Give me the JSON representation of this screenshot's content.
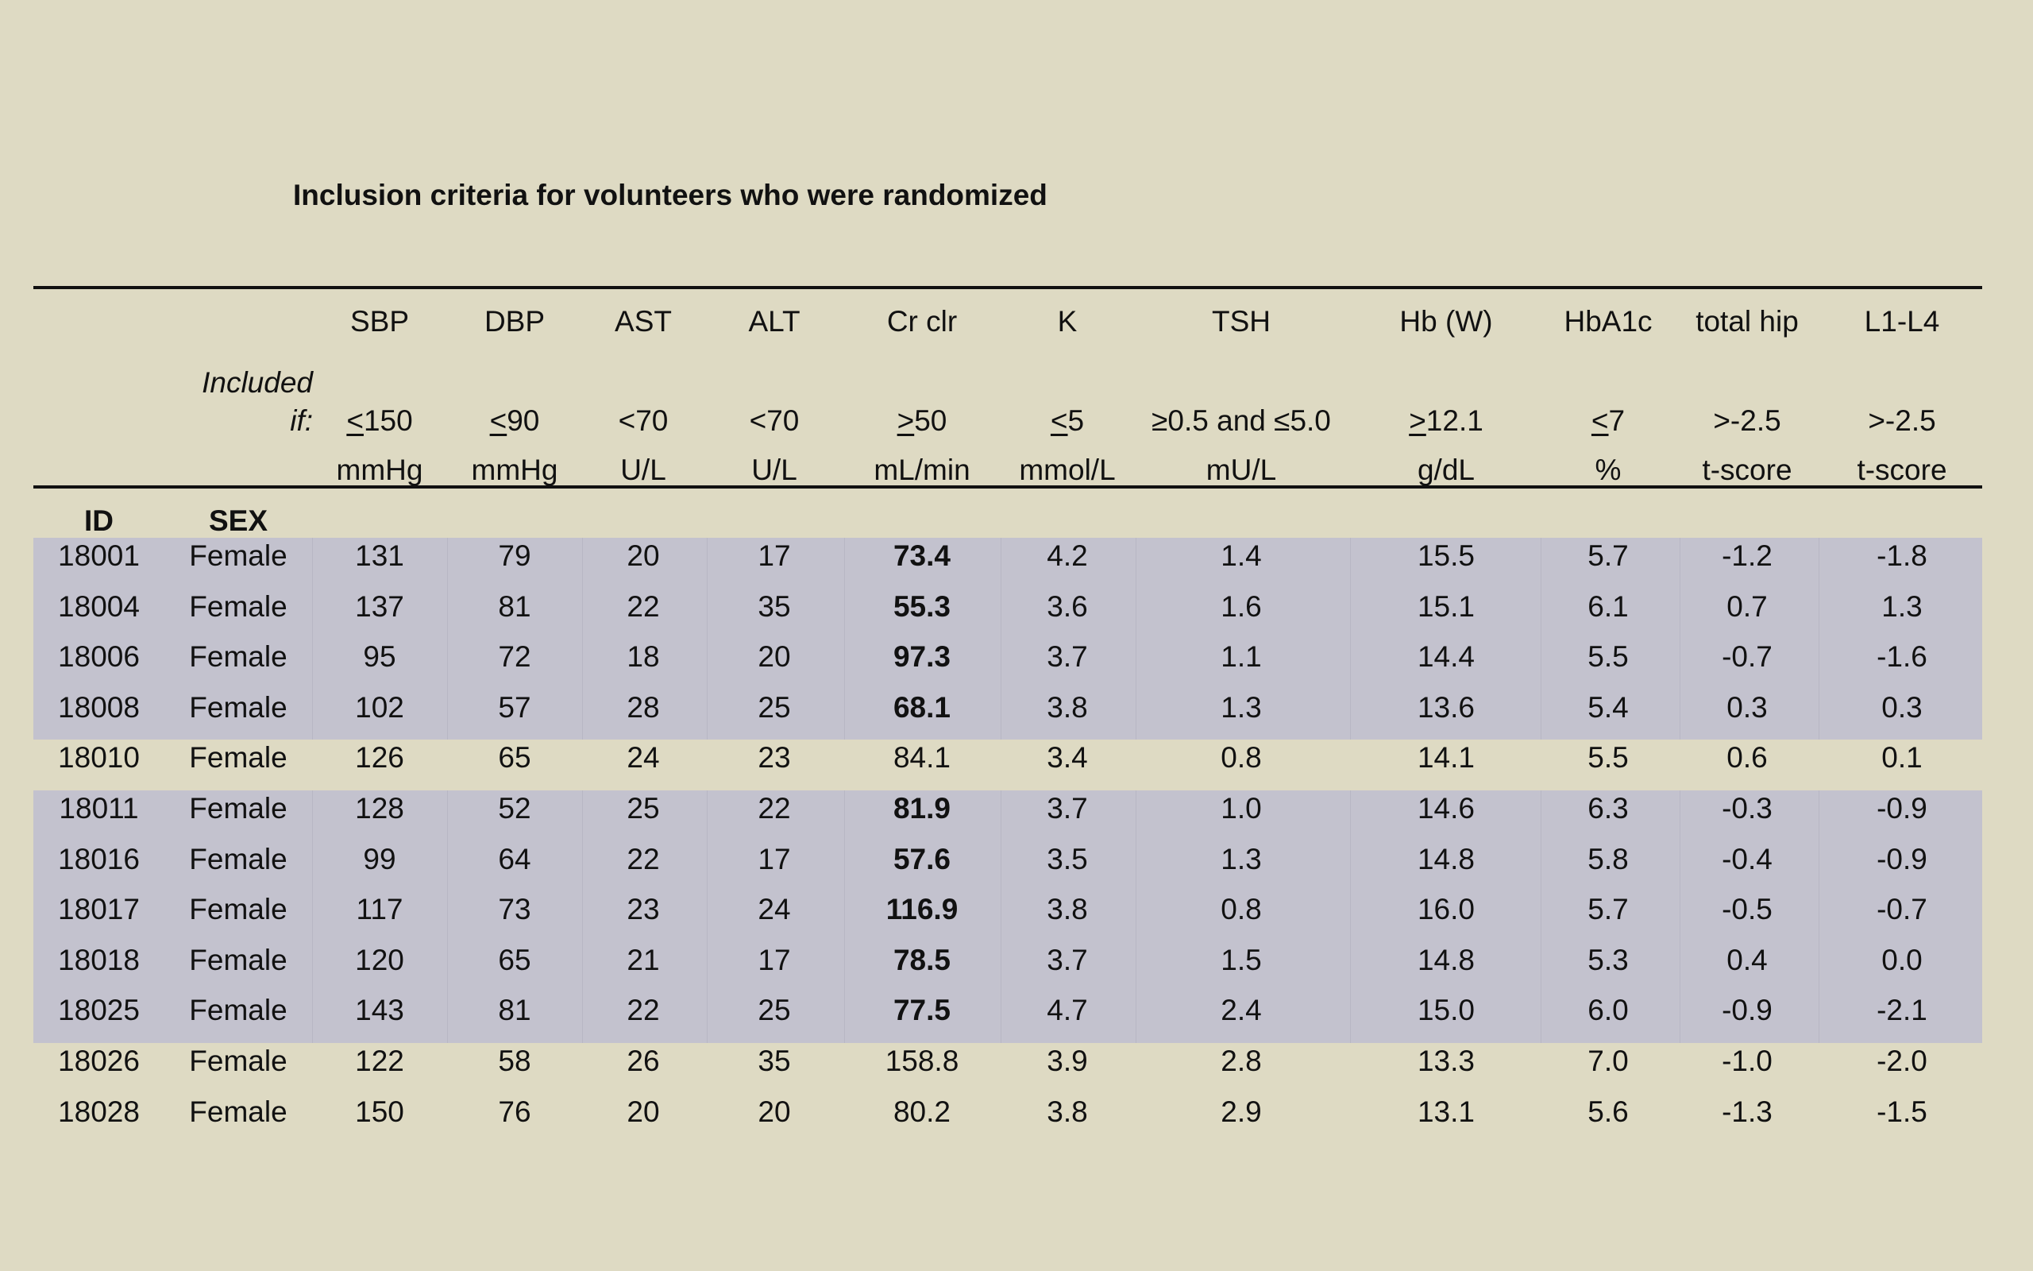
{
  "title": "Inclusion criteria for volunteers who were randomized",
  "included_label_line1": "Included",
  "included_label_line2": "if:",
  "id_header": "ID",
  "sex_header": "SEX",
  "criteria": [
    {
      "name": "SBP",
      "op": "<",
      "threshold": "150",
      "unit": "mmHg"
    },
    {
      "name": "DBP",
      "op": "<",
      "threshold": "90",
      "unit": "mmHg"
    },
    {
      "name": "AST",
      "op": "",
      "threshold": "<70",
      "unit": "U/L"
    },
    {
      "name": "ALT",
      "op": "",
      "threshold": "<70",
      "unit": "U/L"
    },
    {
      "name": "Cr clr",
      "op": ">",
      "threshold": "50",
      "unit": "mL/min"
    },
    {
      "name": "K",
      "op": "<",
      "threshold": "5",
      "unit": "mmol/L"
    },
    {
      "name": "TSH",
      "op": "",
      "threshold": "≥0.5 and ≤5.0",
      "unit": "mU/L"
    },
    {
      "name": "Hb (W)",
      "op": ">",
      "threshold": "12.1",
      "unit": "g/dL"
    },
    {
      "name": "HbA1c",
      "op": "<",
      "threshold": "7",
      "unit": "%"
    },
    {
      "name": "total hip",
      "op": "",
      "threshold": ">-2.5",
      "unit": "t-score"
    },
    {
      "name": "L1-L4",
      "op": "",
      "threshold": ">-2.5",
      "unit": "t-score"
    }
  ],
  "rows": [
    {
      "id": "18001",
      "sex": "Female",
      "shaded": true,
      "values": [
        "131",
        "79",
        "20",
        "17",
        "73.4",
        "4.2",
        "1.4",
        "15.5",
        "5.7",
        "-1.2",
        "-1.8"
      ],
      "cr_bold": true
    },
    {
      "id": "18004",
      "sex": "Female",
      "shaded": true,
      "values": [
        "137",
        "81",
        "22",
        "35",
        "55.3",
        "3.6",
        "1.6",
        "15.1",
        "6.1",
        "0.7",
        "1.3"
      ],
      "cr_bold": true
    },
    {
      "id": "18006",
      "sex": "Female",
      "shaded": true,
      "values": [
        "95",
        "72",
        "18",
        "20",
        "97.3",
        "3.7",
        "1.1",
        "14.4",
        "5.5",
        "-0.7",
        "-1.6"
      ],
      "cr_bold": true
    },
    {
      "id": "18008",
      "sex": "Female",
      "shaded": true,
      "values": [
        "102",
        "57",
        "28",
        "25",
        "68.1",
        "3.8",
        "1.3",
        "13.6",
        "5.4",
        "0.3",
        "0.3"
      ],
      "cr_bold": true
    },
    {
      "id": "18010",
      "sex": "Female",
      "shaded": false,
      "values": [
        "126",
        "65",
        "24",
        "23",
        "84.1",
        "3.4",
        "0.8",
        "14.1",
        "5.5",
        "0.6",
        "0.1"
      ],
      "cr_bold": false
    },
    {
      "id": "18011",
      "sex": "Female",
      "shaded": true,
      "values": [
        "128",
        "52",
        "25",
        "22",
        "81.9",
        "3.7",
        "1.0",
        "14.6",
        "6.3",
        "-0.3",
        "-0.9"
      ],
      "cr_bold": true
    },
    {
      "id": "18016",
      "sex": "Female",
      "shaded": true,
      "values": [
        "99",
        "64",
        "22",
        "17",
        "57.6",
        "3.5",
        "1.3",
        "14.8",
        "5.8",
        "-0.4",
        "-0.9"
      ],
      "cr_bold": true
    },
    {
      "id": "18017",
      "sex": "Female",
      "shaded": true,
      "values": [
        "117",
        "73",
        "23",
        "24",
        "116.9",
        "3.8",
        "0.8",
        "16.0",
        "5.7",
        "-0.5",
        "-0.7"
      ],
      "cr_bold": true
    },
    {
      "id": "18018",
      "sex": "Female",
      "shaded": true,
      "values": [
        "120",
        "65",
        "21",
        "17",
        "78.5",
        "3.7",
        "1.5",
        "14.8",
        "5.3",
        "0.4",
        "0.0"
      ],
      "cr_bold": true
    },
    {
      "id": "18025",
      "sex": "Female",
      "shaded": true,
      "values": [
        "143",
        "81",
        "22",
        "25",
        "77.5",
        "4.7",
        "2.4",
        "15.0",
        "6.0",
        "-0.9",
        "-2.1"
      ],
      "cr_bold": true
    },
    {
      "id": "18026",
      "sex": "Female",
      "shaded": false,
      "values": [
        "122",
        "58",
        "26",
        "35",
        "158.8",
        "3.9",
        "2.8",
        "13.3",
        "7.0",
        "-1.0",
        "-2.0"
      ],
      "cr_bold": false
    },
    {
      "id": "18028",
      "sex": "Female",
      "shaded": false,
      "values": [
        "150",
        "76",
        "20",
        "20",
        "80.2",
        "3.8",
        "2.9",
        "13.1",
        "5.6",
        "-1.3",
        "-1.5"
      ],
      "cr_bold": false
    }
  ],
  "colors": {
    "background": "#dedac3",
    "row_shade": "#c3c2ce",
    "text": "#111111"
  }
}
